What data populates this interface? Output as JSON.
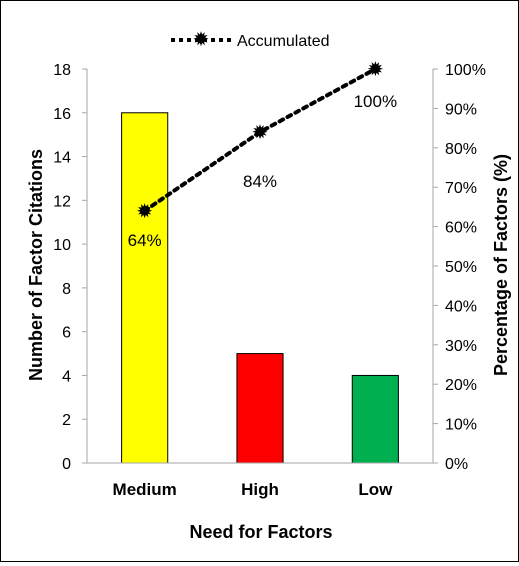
{
  "chart_data": {
    "type": "bar",
    "categories": [
      "Medium",
      "High",
      "Low"
    ],
    "bar_colors": [
      "#ffff00",
      "#ff0000",
      "#00b050"
    ],
    "series": [
      {
        "name": "",
        "type": "bar",
        "axis": "left",
        "values": [
          16,
          5,
          4
        ]
      },
      {
        "name": "Accumulated",
        "type": "line",
        "axis": "right",
        "style": "dotted",
        "marker": "star",
        "values": [
          64,
          84,
          100
        ],
        "labels": [
          "64%",
          "84%",
          "100%"
        ]
      }
    ],
    "xlabel": "Need for Factors",
    "ylabel": "Number of Factor Citations",
    "ylabel_right": "Percentage of Factors (%)",
    "ylim": [
      0,
      18
    ],
    "yticks": [
      "0",
      "2",
      "4",
      "6",
      "8",
      "10",
      "12",
      "14",
      "16",
      "18"
    ],
    "ylim_right": [
      0,
      100
    ],
    "yticks_right": [
      "0%",
      "10%",
      "20%",
      "30%",
      "40%",
      "50%",
      "60%",
      "70%",
      "80%",
      "90%",
      "100%"
    ],
    "legend": {
      "position": "top",
      "entries": [
        "Accumulated"
      ]
    },
    "grid": false
  }
}
